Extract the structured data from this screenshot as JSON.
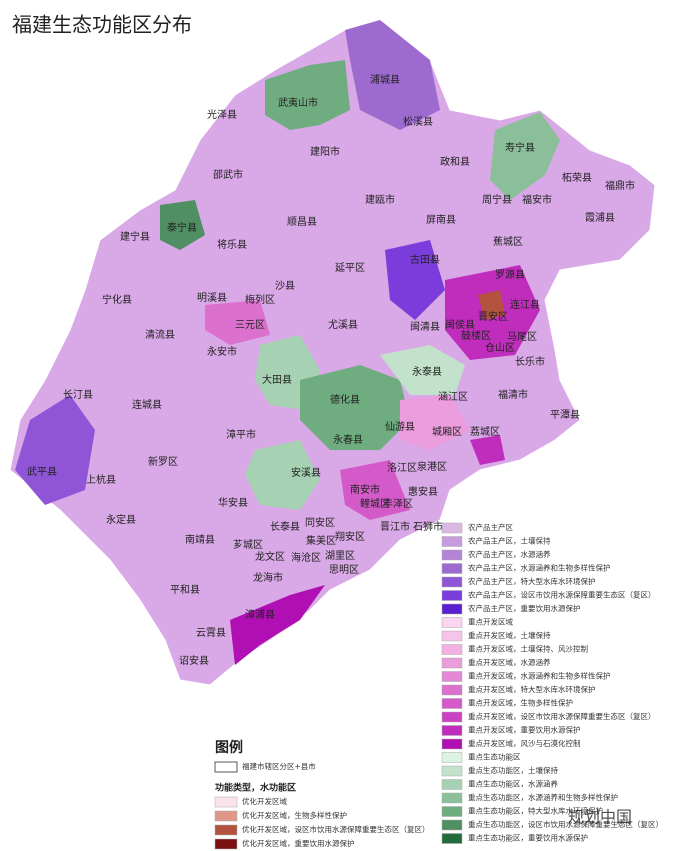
{
  "title": "福建生态功能区分布",
  "map_labels": [
    "浦城县",
    "光泽县",
    "武夷山市",
    "松溪县",
    "建阳市",
    "政和县",
    "寿宁县",
    "柘荣县",
    "邵武市",
    "周宁县",
    "福鼎市",
    "福安市",
    "泰宁县",
    "顺昌县",
    "建瓯市",
    "屏南县",
    "霞浦县",
    "建宁县",
    "将乐县",
    "古田县",
    "蕉城区",
    "延平区",
    "沙县",
    "罗源县",
    "宁化县",
    "明溪县",
    "梅列区",
    "连江县",
    "晋安区",
    "三元区",
    "尤溪县",
    "闽清县",
    "闽侯县",
    "鼓楼区",
    "马尾区",
    "仓山区",
    "清流县",
    "永安市",
    "长乐市",
    "大田县",
    "永泰县",
    "长汀县",
    "连城县",
    "德化县",
    "福清市",
    "涵江区",
    "仙游县",
    "城厢区",
    "荔城区",
    "漳平市",
    "永春县",
    "平潭县",
    "新罗区",
    "洛江区",
    "泉港区",
    "武平县",
    "上杭县",
    "安溪县",
    "南安市",
    "鲤城区",
    "丰泽区",
    "惠安县",
    "华安县",
    "永定县",
    "长泰县",
    "同安区",
    "翔安区",
    "晋江市",
    "石狮市",
    "南靖县",
    "芗城区",
    "集美区",
    "龙文区",
    "海沧区",
    "湖里区",
    "思明区",
    "龙海市",
    "平和县",
    "漳浦县",
    "云霄县",
    "诏安县"
  ],
  "legend": {
    "title": "图例",
    "boundary_label": "福建市辖区分区+县市",
    "function_heading": "功能类型，水功能区",
    "left_items": [
      {
        "label": "优化开发区域",
        "color": "#fbe3ea"
      },
      {
        "label": "优化开发区域，生物多样性保护",
        "color": "#e0978a"
      },
      {
        "label": "优化开发区域，设区市饮用水源保障重要生态区（复区）",
        "color": "#b3523f"
      },
      {
        "label": "优化开发区域，重要饮用水源保护",
        "color": "#7a1010"
      }
    ],
    "right_items": [
      {
        "label": "农产品主产区",
        "color": "#d9b8e3"
      },
      {
        "label": "农产品主产区，土壤保持",
        "color": "#c79cdc"
      },
      {
        "label": "农产品主产区，水源涵养",
        "color": "#b384d6"
      },
      {
        "label": "农产品主产区，水源涵养和生物多样性保护",
        "color": "#9d6ad0"
      },
      {
        "label": "农产品主产区，特大型水库水环境保护",
        "color": "#8f55d6"
      },
      {
        "label": "农产品主产区，设区市饮用水源保障重要生态区（复区）",
        "color": "#7a3ddc"
      },
      {
        "label": "农产品主产区，重要饮用水源保护",
        "color": "#5a1fd0"
      },
      {
        "label": "重点开发区域",
        "color": "#fad6f0"
      },
      {
        "label": "重点开发区域，土壤保持",
        "color": "#f6c3ea"
      },
      {
        "label": "重点开发区域，土壤保持、风沙控制",
        "color": "#f2b0e4"
      },
      {
        "label": "重点开发区域，水源涵养",
        "color": "#ec9ddd"
      },
      {
        "label": "重点开发区域，水源涵养和生物多样性保护",
        "color": "#e487d6"
      },
      {
        "label": "重点开发区域，特大型水库水环境保护",
        "color": "#dc70cf"
      },
      {
        "label": "重点开发区域，生物多样性保护",
        "color": "#d45ac9"
      },
      {
        "label": "重点开发区域，设区市饮用水源保障重要生态区（复区）",
        "color": "#cb43c3"
      },
      {
        "label": "重点开发区域，重要饮用水源保护",
        "color": "#c02dbd"
      },
      {
        "label": "重点开发区域，风沙与石漠化控制",
        "color": "#b010b3"
      },
      {
        "label": "重点生态功能区",
        "color": "#def2e4"
      },
      {
        "label": "重点生态功能区，土壤保持",
        "color": "#c2e2cb"
      },
      {
        "label": "重点生态功能区，水源涵养",
        "color": "#a6d1b2"
      },
      {
        "label": "重点生态功能区，水源涵养和生物多样性保护",
        "color": "#8bbf99"
      },
      {
        "label": "重点生态功能区，特大型水库水环境保护",
        "color": "#6fac80"
      },
      {
        "label": "重点生态功能区，设区市饮用水源保障重要生态区（复区）",
        "color": "#4f8f62"
      },
      {
        "label": "重点生态功能区，重要饮用水源保护",
        "color": "#226b3a"
      }
    ]
  },
  "watermark": "规划中国"
}
